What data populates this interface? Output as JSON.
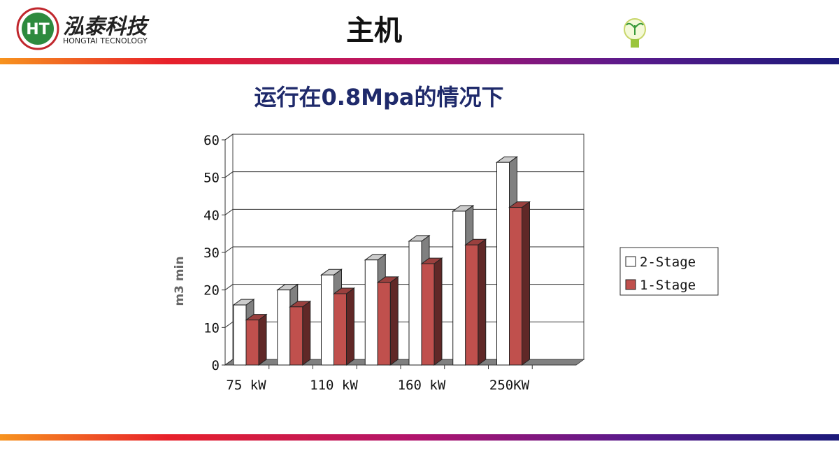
{
  "header": {
    "logo_mark": "HT",
    "logo_name": "泓泰科技",
    "logo_sub": "HONGTAI TECNOLOGY",
    "title": "主机"
  },
  "chart_data": {
    "type": "bar3d",
    "title": "运行在0.8Mpa的情况下",
    "y_label": "m3 min",
    "categories": [
      "75 kW",
      null,
      "110 kW",
      null,
      "160 kW",
      null,
      "250KW"
    ],
    "series": [
      {
        "name": "2-Stage",
        "color": "#ffffff",
        "values": [
          16,
          20,
          24,
          28,
          33,
          41,
          54
        ]
      },
      {
        "name": "1-Stage",
        "color": "#c0504d",
        "values": [
          12,
          15.5,
          19,
          22,
          27,
          32,
          42
        ]
      }
    ],
    "ylim": [
      0,
      60
    ],
    "yticks": [
      0,
      10,
      20,
      30,
      40,
      50,
      60
    ],
    "grid": true,
    "legend": "right"
  }
}
